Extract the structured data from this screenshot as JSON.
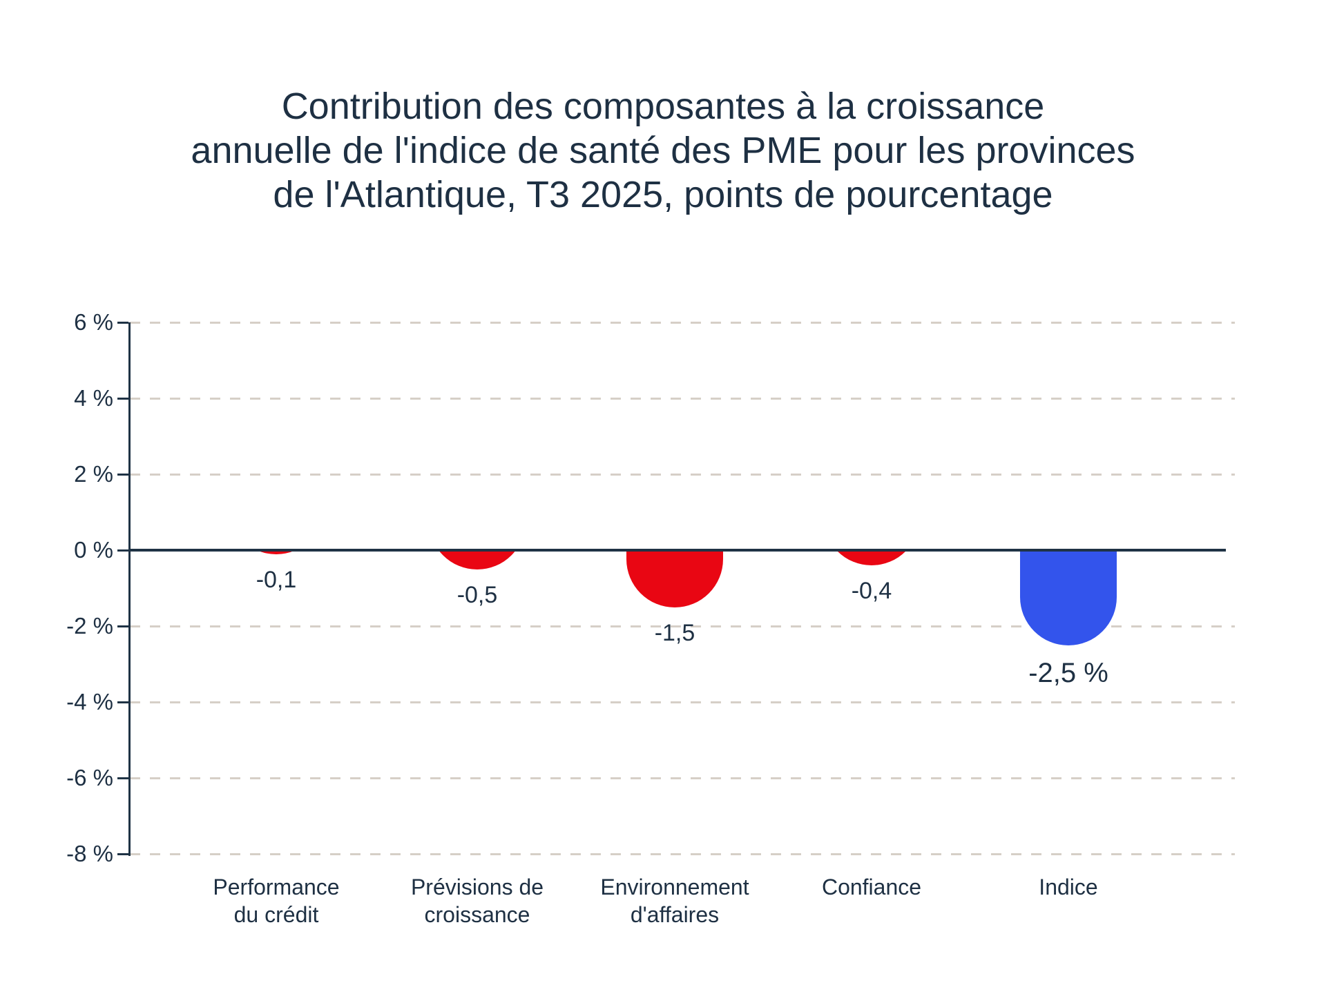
{
  "chart_data": {
    "type": "bar",
    "title": "Contribution des composantes à la croissance annuelle de l'indice de santé des PME pour les provinces de l'Atlantique, T3 2025, points de pourcentage",
    "title_lines": [
      "Contribution des composantes à la croissance",
      "annuelle de l'indice de santé des PME pour les provinces",
      "de l'Atlantique, T3 2025, points de pourcentage"
    ],
    "categories": [
      "Performance du crédit",
      "Prévisions de croissance",
      "Environnement d'affaires",
      "Confiance",
      "Indice"
    ],
    "category_lines": [
      [
        "Performance",
        "du crédit"
      ],
      [
        "Prévisions de",
        "croissance"
      ],
      [
        "Environnement",
        "d'affaires"
      ],
      [
        "Confiance"
      ],
      [
        "Indice"
      ]
    ],
    "values": [
      -0.1,
      -0.5,
      -1.5,
      -0.4,
      -2.5
    ],
    "value_labels": [
      "-0,1",
      "-0,5",
      "-1,5",
      "-0,4",
      "-2,5 %"
    ],
    "bar_colors": [
      "#e90613",
      "#e90613",
      "#e90613",
      "#e90613",
      "#3354ec"
    ],
    "xlabel": "",
    "ylabel": "",
    "y_tick_values": [
      6,
      4,
      2,
      0,
      -2,
      -4,
      -6,
      -8
    ],
    "y_tick_labels": [
      "6 %",
      "4 %",
      "2 %",
      "0 %",
      "-2 %",
      "-4 %",
      "-6 %",
      "-8 %"
    ],
    "ylim": [
      -8,
      6
    ],
    "grid": "dashed horizontal gridlines, solid zero baseline",
    "legend": "none",
    "colors": {
      "component_bar": "#e90613",
      "index_bar": "#3354ec",
      "axis": "#1f3345",
      "text": "#1e3043",
      "gridline": "#d6cfc7"
    }
  }
}
